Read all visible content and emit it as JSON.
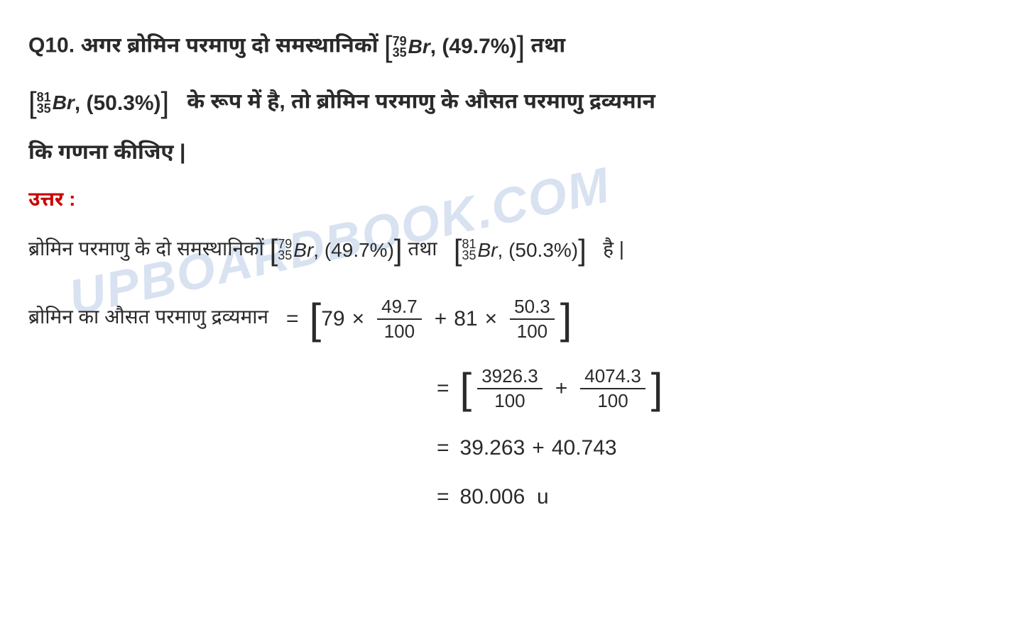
{
  "question": {
    "number": "Q10.",
    "text1": "अगर ब्रोमिन परमाणु दो समस्थानिकों",
    "iso1_top": "79",
    "iso1_bot": "35",
    "iso1_elem": "Br",
    "iso1_pct": ", (49.7%)",
    "text2": "तथा",
    "iso2_top": "81",
    "iso2_bot": "35",
    "iso2_elem": "Br",
    "iso2_pct": ", (50.3%)",
    "text3": "के रूप में है, तो ब्रोमिन परमाणु के औसत परमाणु द्रव्यमान",
    "text4": "कि गणना कीजिए |"
  },
  "answer": {
    "label": "उत्तर :",
    "line1_a": "ब्रोमिन परमाणु के दो समस्थानिकों",
    "line1_iso1_top": "79",
    "line1_iso1_bot": "35",
    "line1_iso1_elem": "Br",
    "line1_iso1_pct": ", (49.7%)",
    "line1_b": "तथा",
    "line1_iso2_top": "81",
    "line1_iso2_bot": "35",
    "line1_iso2_elem": "Br",
    "line1_iso2_pct": ", (50.3%)",
    "line1_c": "है |"
  },
  "calc": {
    "label": "ब्रोमिन का औसत परमाणु द्रव्यमान",
    "eq": "=",
    "m1": "79",
    "times": "×",
    "f1_num": "49.7",
    "f1_den": "100",
    "plus": "+",
    "m2": "81",
    "f2_num": "50.3",
    "f2_den": "100",
    "s2_f1_num": "3926.3",
    "s2_f1_den": "100",
    "s2_f2_num": "4074.3",
    "s2_f2_den": "100",
    "s3_a": "39.263",
    "s3_b": "40.743",
    "s4": "80.006",
    "unit": "u"
  },
  "watermark": "UPBOARDBOOK.COM",
  "colors": {
    "text": "#2a2a2a",
    "answer_label": "#cc0000",
    "watermark": "rgba(100,140,200,0.25)",
    "background": "#ffffff"
  }
}
